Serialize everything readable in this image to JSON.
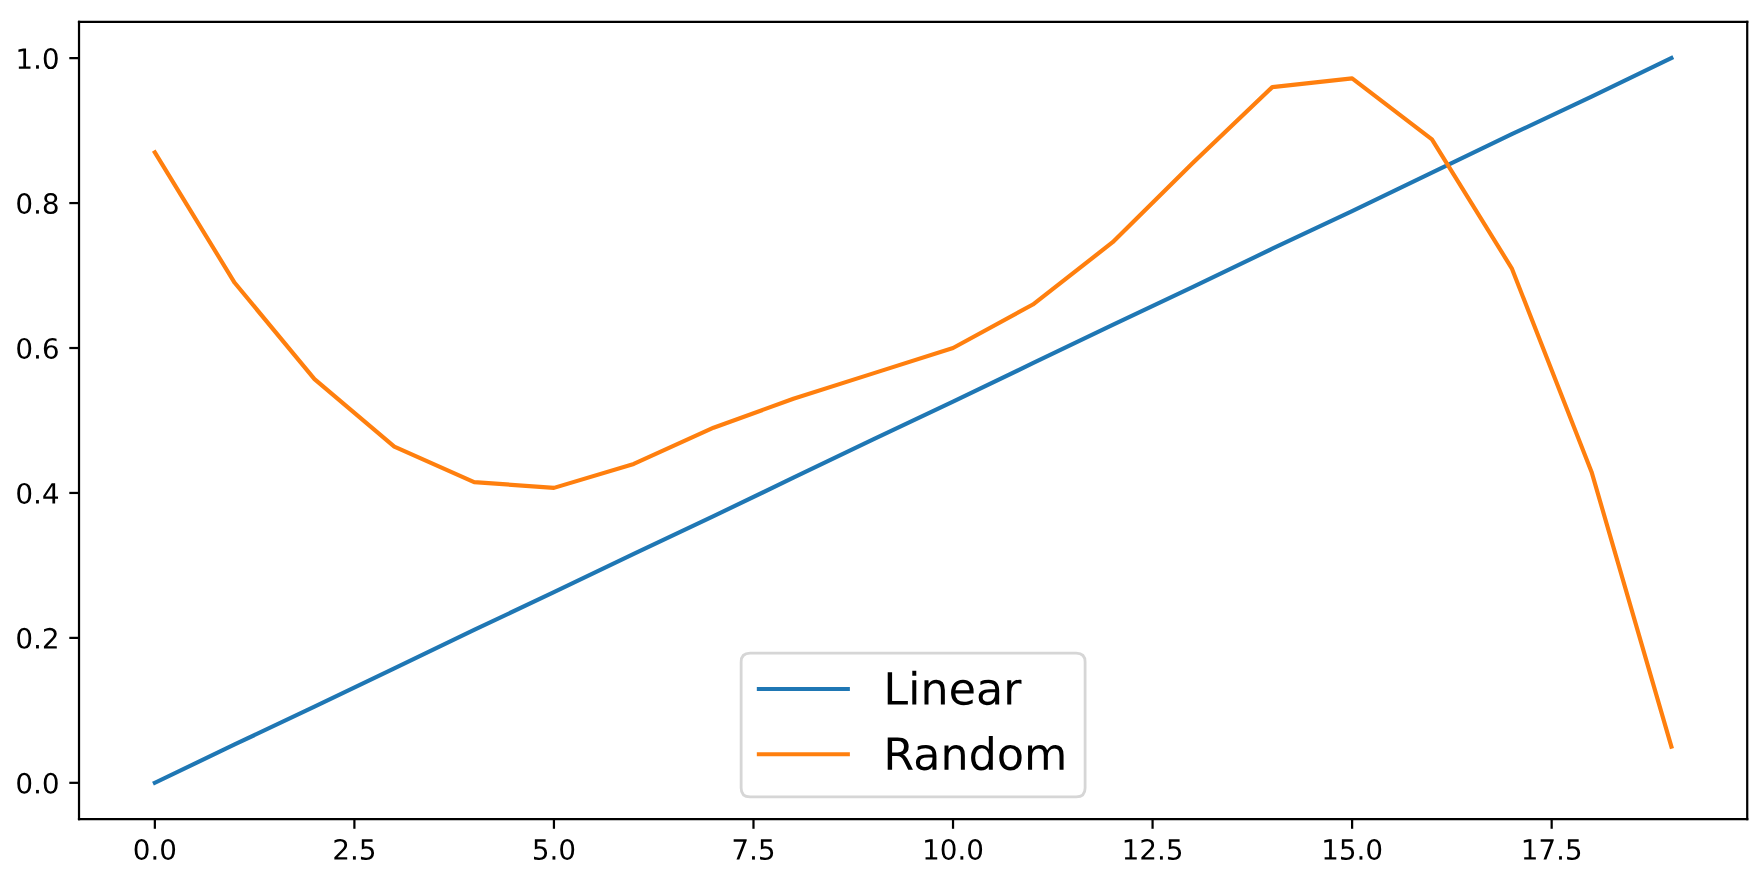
{
  "chart_data": {
    "type": "line",
    "x": [
      0,
      1,
      2,
      3,
      4,
      5,
      6,
      7,
      8,
      9,
      10,
      11,
      12,
      13,
      14,
      15,
      16,
      17,
      18,
      19
    ],
    "series": [
      {
        "name": "Linear",
        "color": "#1f77b4",
        "values": [
          0,
          0.053,
          0.105,
          0.158,
          0.211,
          0.263,
          0.316,
          0.368,
          0.421,
          0.474,
          0.526,
          0.579,
          0.632,
          0.684,
          0.737,
          0.789,
          0.842,
          0.895,
          0.947,
          1.0
        ]
      },
      {
        "name": "Random",
        "color": "#ff7f0e",
        "values": [
          0.87,
          0.69,
          0.557,
          0.464,
          0.415,
          0.407,
          0.44,
          0.49,
          0.53,
          0.565,
          0.6,
          0.66,
          0.746,
          0.855,
          0.96,
          0.972,
          0.888,
          0.71,
          0.429,
          0.05
        ]
      }
    ],
    "xlim": [
      -0.95,
      19.95
    ],
    "xticks": [
      {
        "value": 0,
        "label": "0.0"
      },
      {
        "value": 2.5,
        "label": "2.5"
      },
      {
        "value": 5,
        "label": "5.0"
      },
      {
        "value": 7.5,
        "label": "7.5"
      },
      {
        "value": 10,
        "label": "10.0"
      },
      {
        "value": 12.5,
        "label": "12.5"
      },
      {
        "value": 15,
        "label": "15.0"
      },
      {
        "value": 17.5,
        "label": "17.5"
      }
    ],
    "ylim": [
      -0.05,
      1.05
    ],
    "yticks": [
      {
        "value": 0,
        "label": "0.0"
      },
      {
        "value": 0.2,
        "label": "0.2"
      },
      {
        "value": 0.4,
        "label": "0.4"
      },
      {
        "value": 0.6,
        "label": "0.6"
      },
      {
        "value": 0.8,
        "label": "0.8"
      },
      {
        "value": 1.0,
        "label": "1.0"
      }
    ],
    "legend": "bottom",
    "grid": false,
    "line_style": "solid"
  }
}
